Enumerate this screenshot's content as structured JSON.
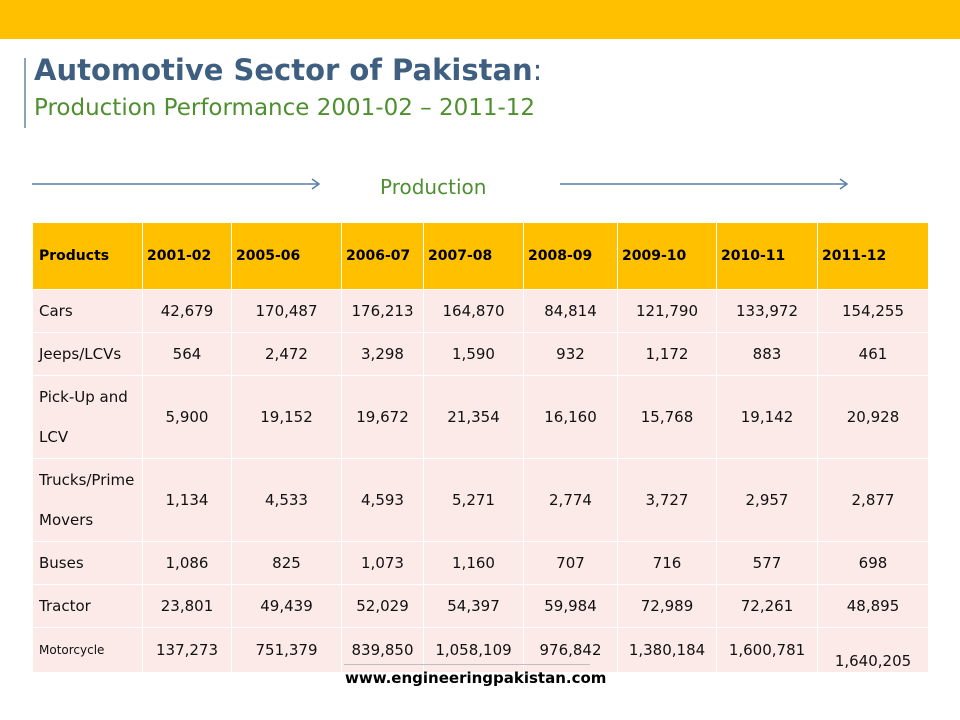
{
  "title": {
    "main": "Automotive Sector of Pakistan",
    "colon": ":",
    "subtitle": "Production Performance  2001-02 – 2011-12"
  },
  "section_label": "Production",
  "colors": {
    "accent_bar": "#ffc000",
    "title": "#3e5f7f",
    "subtitle": "#4e8f2f",
    "table_header": "#ffc000",
    "table_cell": "#fbeae8"
  },
  "table": {
    "headers": [
      "Products",
      "2001-02",
      "2005-06",
      "2006-07",
      "2007-08",
      "2008-09",
      "2009-10",
      "2010-11",
      "2011-12"
    ],
    "rows": [
      {
        "product": "Cars",
        "values": [
          "42,679",
          "170,487",
          "176,213",
          "164,870",
          "84,814",
          "121,790",
          "133,972",
          "154,255"
        ]
      },
      {
        "product": "Jeeps/LCVs",
        "values": [
          "564",
          "2,472",
          "3,298",
          "1,590",
          "932",
          "1,172",
          "883",
          "461"
        ]
      },
      {
        "product": "Pick-Up and LCV",
        "values": [
          "5,900",
          "19,152",
          "19,672",
          "21,354",
          "16,160",
          "15,768",
          "19,142",
          "20,928"
        ]
      },
      {
        "product": "Trucks/Prime Movers",
        "values": [
          "1,134",
          "4,533",
          "4,593",
          "5,271",
          "2,774",
          "3,727",
          "2,957",
          "2,877"
        ]
      },
      {
        "product": "Buses",
        "values": [
          "1,086",
          "825",
          "1,073",
          "1,160",
          "707",
          "716",
          "577",
          "698"
        ]
      },
      {
        "product": "Tractor",
        "values": [
          "23,801",
          "49,439",
          "52,029",
          "54,397",
          "59,984",
          "72,989",
          "72,261",
          "48,895"
        ]
      },
      {
        "product": "Motorcycle",
        "values": [
          "137,273",
          "751,379",
          "839,850",
          "1,058,109",
          "976,842",
          "1,380,184",
          "1,600,781",
          "1,640,205"
        ]
      }
    ]
  },
  "footer": "www.engineeringpakistan.com"
}
